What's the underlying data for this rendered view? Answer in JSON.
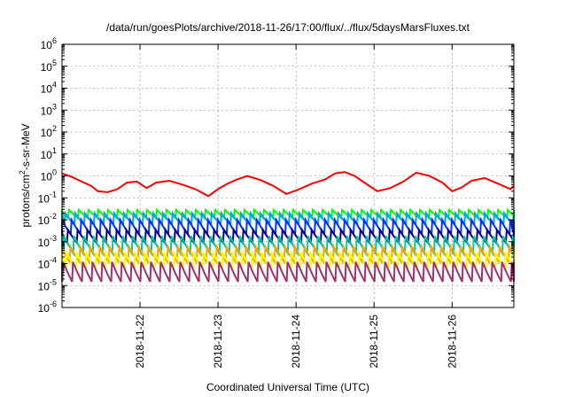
{
  "chart_data": {
    "type": "line",
    "title": "/data/run/goesPlots/archive/2018-11-26/17:00/flux/../flux/5daysMarsFluxes.txt",
    "xlabel": "Coordinated Universal Time (UTC)",
    "ylabel": {
      "prefix": "protons/cm",
      "superscript": "2",
      "suffix": "-s-sr-MeV"
    },
    "y_scale": "log",
    "ylim": [
      1e-06,
      1000000.0
    ],
    "y_ticks": [
      {
        "value": 1e-06,
        "exp": "-6"
      },
      {
        "value": 1e-05,
        "exp": "-5"
      },
      {
        "value": 0.0001,
        "exp": "-4"
      },
      {
        "value": 0.001,
        "exp": "-3"
      },
      {
        "value": 0.01,
        "exp": "-2"
      },
      {
        "value": 0.1,
        "exp": "-1"
      },
      {
        "value": 1,
        "exp": "0"
      },
      {
        "value": 10,
        "exp": "1"
      },
      {
        "value": 100,
        "exp": "2"
      },
      {
        "value": 1000,
        "exp": "3"
      },
      {
        "value": 10000,
        "exp": "4"
      },
      {
        "value": 100000,
        "exp": "5"
      },
      {
        "value": 1000000,
        "exp": "6"
      }
    ],
    "y_tick_base": "10",
    "x_type": "datetime",
    "xlim": [
      "2018-11-21T00:00",
      "2018-11-26T19:00"
    ],
    "x_ticks": [
      "2018-11-22",
      "2018-11-23",
      "2018-11-24",
      "2018-11-25",
      "2018-11-26"
    ],
    "grid": "dashed",
    "legend": "none",
    "sawtooth_period_hours": 3,
    "series": [
      {
        "color": "#ff0000",
        "x": [
          "2018-11-21T00:00",
          "2018-11-21T03:00",
          "2018-11-21T06:00",
          "2018-11-21T09:00",
          "2018-11-21T11:00",
          "2018-11-21T14:00",
          "2018-11-21T17:00",
          "2018-11-21T20:00",
          "2018-11-21T23:00",
          "2018-11-22T02:00",
          "2018-11-22T05:00",
          "2018-11-22T09:00",
          "2018-11-22T13:00",
          "2018-11-22T17:00",
          "2018-11-22T21:00",
          "2018-11-23T00:00",
          "2018-11-23T03:00",
          "2018-11-23T06:00",
          "2018-11-23T09:00",
          "2018-11-23T13:00",
          "2018-11-23T17:00",
          "2018-11-23T21:00",
          "2018-11-24T01:00",
          "2018-11-24T05:00",
          "2018-11-24T09:00",
          "2018-11-24T12:00",
          "2018-11-24T15:00",
          "2018-11-24T18:00",
          "2018-11-24T21:00",
          "2018-11-25T01:00",
          "2018-11-25T05:00",
          "2018-11-25T09:00",
          "2018-11-25T13:00",
          "2018-11-25T17:00",
          "2018-11-25T21:00",
          "2018-11-26T00:00",
          "2018-11-26T03:00",
          "2018-11-26T06:00",
          "2018-11-26T10:00",
          "2018-11-26T14:00",
          "2018-11-26T18:00",
          "2018-11-26T19:00"
        ],
        "values": [
          1.3,
          0.9,
          0.55,
          0.35,
          0.2,
          0.18,
          0.25,
          0.5,
          0.55,
          0.28,
          0.5,
          0.6,
          0.4,
          0.25,
          0.12,
          0.25,
          0.45,
          0.7,
          1.0,
          0.65,
          0.35,
          0.15,
          0.25,
          0.45,
          0.7,
          1.3,
          1.5,
          1.0,
          0.5,
          0.2,
          0.28,
          0.55,
          1.4,
          1.0,
          0.5,
          0.2,
          0.3,
          0.6,
          0.8,
          0.45,
          0.25,
          0.35
        ]
      },
      {
        "color": "#00ff00",
        "base": 0.012,
        "peak": 0.028
      },
      {
        "color": "#00a0ff",
        "base": 0.006,
        "peak": 0.02
      },
      {
        "color": "#0032ff",
        "base": 0.0022,
        "peak": 0.01
      },
      {
        "color": "#00008b",
        "base": 0.0009,
        "peak": 0.0035
      },
      {
        "color": "#00c8a0",
        "base": 0.0003,
        "peak": 0.0018
      },
      {
        "color": "#ffa500",
        "base": 0.00012,
        "peak": 0.0006
      },
      {
        "color": "#ffff00",
        "base": 6e-05,
        "peak": 0.0003
      },
      {
        "color": "#a0326e",
        "base": 1.5e-05,
        "peak": 0.00012
      }
    ]
  }
}
